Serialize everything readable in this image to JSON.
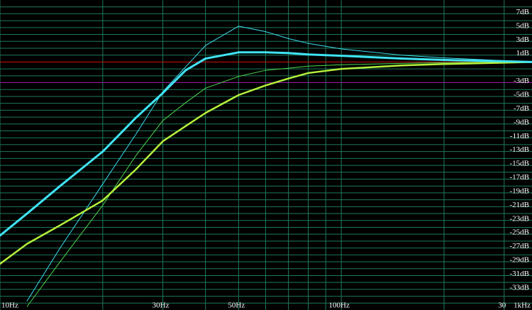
{
  "chart_data": {
    "type": "line",
    "xscale": "log",
    "x": [
      10,
      12,
      15,
      20,
      25,
      30,
      35,
      40,
      50,
      60,
      70,
      80,
      100,
      150,
      200,
      300,
      362
    ],
    "xlim": [
      10,
      362
    ],
    "xticks": [
      {
        "value": 10,
        "label": "10Hz"
      },
      {
        "value": 30,
        "label": "30Hz"
      },
      {
        "value": 50,
        "label": "50Hz"
      },
      {
        "value": 100,
        "label": "100Hz"
      },
      {
        "value": 300,
        "label": "30"
      }
    ],
    "x_right_label": "1kHz",
    "xgrid": [
      20,
      40,
      60,
      70,
      80,
      90,
      200
    ],
    "ylim": [
      -36,
      9
    ],
    "yticks": [
      {
        "value": 7,
        "label": "7dB"
      },
      {
        "value": 5,
        "label": "5dB"
      },
      {
        "value": 3,
        "label": "3dB"
      },
      {
        "value": 1,
        "label": "1dB"
      },
      {
        "value": -3,
        "label": "-3dB"
      },
      {
        "value": -5,
        "label": "-5dB"
      },
      {
        "value": -7,
        "label": "-7dB"
      },
      {
        "value": -9,
        "label": "-9dB"
      },
      {
        "value": -11,
        "label": "-11dB"
      },
      {
        "value": -13,
        "label": "-13dB"
      },
      {
        "value": -15,
        "label": "-15dB"
      },
      {
        "value": -17,
        "label": "-17dB"
      },
      {
        "value": -19,
        "label": "-19dB"
      },
      {
        "value": -21,
        "label": "-21dB"
      },
      {
        "value": -23,
        "label": "-23dB"
      },
      {
        "value": -25,
        "label": "-25dB"
      },
      {
        "value": -27,
        "label": "-27dB"
      },
      {
        "value": -29,
        "label": "-29dB"
      },
      {
        "value": -31,
        "label": "-31dB"
      },
      {
        "value": -33,
        "label": "-33dB"
      }
    ],
    "ygrid": [
      8,
      6,
      4,
      2,
      -1,
      -2,
      -4,
      -6,
      -8,
      -10,
      -12,
      -14,
      -16,
      -18,
      -20,
      -22,
      -24,
      -26,
      -28,
      -30,
      -32,
      -34,
      -35
    ],
    "grid": true,
    "grid_color": "#1f7a5a",
    "reference_lines": [
      {
        "value": 0,
        "color": "#d01010"
      },
      {
        "value": -3,
        "color": "#9a1aa0"
      }
    ],
    "series": [
      {
        "color": "#3ee0f0",
        "width": 1,
        "values": [
          null,
          -34.7,
          -27,
          -17.7,
          -10.5,
          -4.3,
          -0.7,
          2.4,
          5.2,
          4.4,
          3.4,
          2.7,
          1.9,
          1.0,
          0.6,
          0.2,
          0
        ]
      },
      {
        "color": "#4ed84e",
        "width": 1,
        "values": [
          null,
          -35.5,
          -29,
          -20.8,
          -13.6,
          -8.5,
          -5.9,
          -3.8,
          -2.1,
          -1.2,
          -0.9,
          -0.6,
          -0.4,
          -0.2,
          -0.1,
          0,
          0
        ]
      },
      {
        "color": "#b4f03c",
        "width": 2.5,
        "values": [
          -29.3,
          -26.4,
          -23.7,
          -20.1,
          -15.6,
          -11.5,
          -9.3,
          -7.4,
          -4.8,
          -3.4,
          -2.4,
          -1.6,
          -1.0,
          -0.5,
          -0.3,
          -0.1,
          0
        ]
      },
      {
        "color": "#40e4f4",
        "width": 3,
        "values": [
          -25.2,
          -22,
          -18,
          -13,
          -8.1,
          -4.5,
          -1.2,
          0.5,
          1.4,
          1.4,
          1.3,
          1.1,
          0.9,
          0.5,
          0.3,
          0.1,
          0
        ]
      }
    ]
  }
}
